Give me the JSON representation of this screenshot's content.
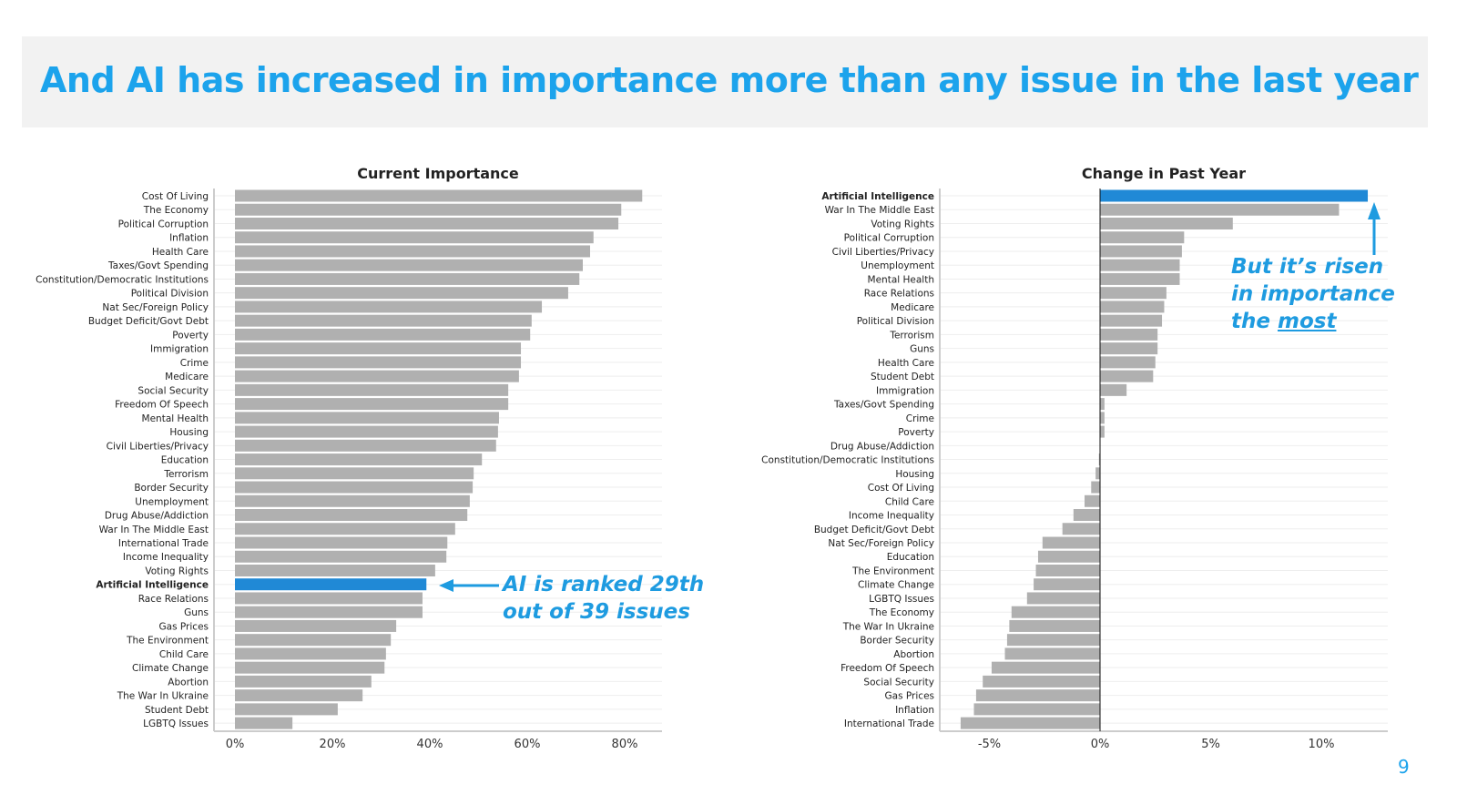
{
  "header": {
    "title": "And AI has increased in importance more than any issue in the last year"
  },
  "annotations": {
    "left_line1": "AI is ranked 29th",
    "left_line2": "out of 39 issues",
    "right_line1": "But it’s risen",
    "right_line2": "in importance",
    "right_line3_prefix": "the ",
    "right_line3_emph": "most"
  },
  "page_number": "9",
  "colors": {
    "highlight": "#2089d6",
    "bar": "#b0b0b0",
    "accent": "#1ca3ec"
  },
  "chart_data": [
    {
      "type": "bar",
      "orientation": "horizontal",
      "title": "Current Importance",
      "xlim": [
        0,
        88
      ],
      "xticks": [
        0,
        20,
        40,
        60,
        80
      ],
      "xtick_labels": [
        "0%",
        "20%",
        "40%",
        "60%",
        "80%"
      ],
      "highlight": "Artificial Intelligence",
      "categories": [
        "Cost Of Living",
        "The Economy",
        "Political Corruption",
        "Inflation",
        "Health Care",
        "Taxes/Govt Spending",
        "Constitution/Democratic Institutions",
        "Political Division",
        "Nat Sec/Foreign Policy",
        "Budget Deficit/Govt Debt",
        "Poverty",
        "Immigration",
        "Crime",
        "Medicare",
        "Social Security",
        "Freedom Of Speech",
        "Mental Health",
        "Housing",
        "Civil Liberties/Privacy",
        "Education",
        "Terrorism",
        "Border Security",
        "Unemployment",
        "Drug Abuse/Addiction",
        "War In The Middle East",
        "International Trade",
        "Income Inequality",
        "Voting Rights",
        "Artificial Intelligence",
        "Race Relations",
        "Guns",
        "Gas Prices",
        "The Environment",
        "Child Care",
        "Climate Change",
        "Abortion",
        "The War In Ukraine",
        "Student Debt",
        "LGBTQ Issues"
      ],
      "values": [
        83.6,
        79.3,
        78.7,
        73.6,
        72.9,
        71.4,
        70.7,
        68.4,
        63.0,
        60.9,
        60.6,
        58.7,
        58.7,
        58.3,
        56.1,
        56.1,
        54.2,
        54.0,
        53.6,
        50.7,
        49.0,
        48.8,
        48.2,
        47.7,
        45.2,
        43.6,
        43.4,
        41.1,
        39.3,
        38.5,
        38.5,
        33.1,
        32.0,
        31.0,
        30.7,
        28.0,
        26.2,
        21.1,
        11.8
      ]
    },
    {
      "type": "bar",
      "orientation": "horizontal",
      "title": "Change in Past Year",
      "xlim": [
        -7.3,
        13
      ],
      "xticks": [
        -5,
        0,
        5,
        10
      ],
      "xtick_labels": [
        "-5%",
        "0%",
        "5%",
        "10%"
      ],
      "highlight": "Artificial Intelligence",
      "categories": [
        "Artificial Intelligence",
        "War In The Middle East",
        "Voting Rights",
        "Political Corruption",
        "Civil Liberties/Privacy",
        "Unemployment",
        "Mental Health",
        "Race Relations",
        "Medicare",
        "Political Division",
        "Terrorism",
        "Guns",
        "Health Care",
        "Student Debt",
        "Immigration",
        "Taxes/Govt Spending",
        "Crime",
        "Poverty",
        "Drug Abuse/Addiction",
        "Constitution/Democratic Institutions",
        "Housing",
        "Cost Of Living",
        "Child Care",
        "Income Inequality",
        "Budget Deficit/Govt Debt",
        "Nat Sec/Foreign Policy",
        "Education",
        "The Environment",
        "Climate Change",
        "LGBTQ Issues",
        "The Economy",
        "The War In Ukraine",
        "Border Security",
        "Abortion",
        "Freedom Of Speech",
        "Social Security",
        "Gas Prices",
        "Inflation",
        "International Trade"
      ],
      "values": [
        12.1,
        10.8,
        6.0,
        3.8,
        3.7,
        3.6,
        3.6,
        3.0,
        2.9,
        2.8,
        2.6,
        2.6,
        2.5,
        2.4,
        1.2,
        0.2,
        0.2,
        0.2,
        0.0,
        -0.05,
        -0.2,
        -0.4,
        -0.7,
        -1.2,
        -1.7,
        -2.6,
        -2.8,
        -2.9,
        -3.0,
        -3.3,
        -4.0,
        -4.1,
        -4.2,
        -4.3,
        -4.9,
        -5.3,
        -5.6,
        -5.7,
        -6.3
      ]
    }
  ]
}
